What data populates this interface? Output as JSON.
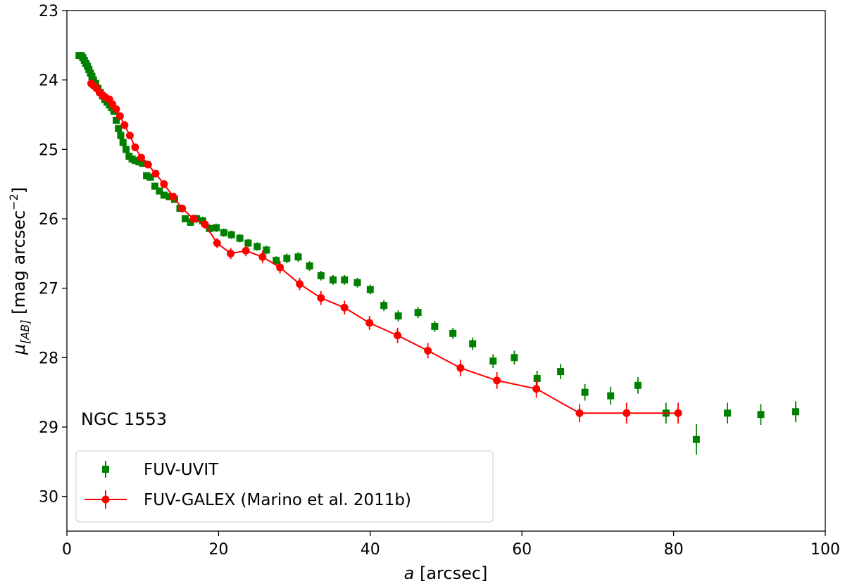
{
  "chart_data": {
    "type": "scatter",
    "xlabel_italic": "a",
    "xlabel_rest": " [arcsec]",
    "ylabel_mu": "μ",
    "ylabel_sub": "[AB]",
    "ylabel_main": " [mag arcsec",
    "ylabel_sup": "−2",
    "ylabel_close": "]",
    "xlim": [
      0,
      100
    ],
    "ylim": [
      30.5,
      23
    ],
    "y_inverted": true,
    "xticks": [
      0,
      20,
      40,
      60,
      80,
      100
    ],
    "yticks": [
      23,
      24,
      25,
      26,
      27,
      28,
      29,
      30
    ],
    "grid": false,
    "annotation": "NGC 1553",
    "legend_placement": "lower-left",
    "series": [
      {
        "name": "FUV-UVIT",
        "marker": "square",
        "line": false,
        "color": "#008000",
        "x": [
          1.6,
          1.9,
          2.1,
          2.3,
          2.5,
          2.7,
          2.9,
          3.1,
          3.3,
          3.5,
          3.8,
          4.1,
          4.4,
          4.7,
          5.0,
          5.3,
          5.6,
          5.9,
          6.2,
          6.5,
          6.8,
          7.1,
          7.4,
          7.8,
          8.2,
          8.6,
          9.0,
          9.5,
          10.0,
          10.5,
          11.0,
          11.6,
          12.2,
          12.8,
          13.5,
          14.2,
          14.9,
          15.6,
          16.3,
          17.1,
          17.9,
          18.8,
          19.7,
          20.7,
          21.7,
          22.8,
          23.9,
          25.1,
          26.3,
          27.6,
          29.0,
          30.5,
          32.0,
          33.5,
          35.1,
          36.6,
          38.3,
          40.0,
          41.8,
          43.7,
          46.3,
          48.5,
          50.9,
          53.5,
          56.2,
          59.0,
          62.0,
          65.1,
          68.3,
          71.7,
          75.3,
          79.0,
          83.0,
          87.1,
          91.5,
          96.1
        ],
        "y": [
          23.65,
          23.65,
          23.68,
          23.72,
          23.76,
          23.8,
          23.85,
          23.9,
          23.95,
          24.0,
          24.05,
          24.12,
          24.18,
          24.23,
          24.28,
          24.32,
          24.36,
          24.4,
          24.45,
          24.58,
          24.7,
          24.8,
          24.9,
          25.0,
          25.1,
          25.14,
          25.16,
          25.18,
          25.2,
          25.38,
          25.4,
          25.53,
          25.6,
          25.66,
          25.68,
          25.72,
          25.85,
          26.0,
          26.05,
          26.0,
          26.03,
          26.14,
          26.13,
          26.2,
          26.23,
          26.28,
          26.35,
          26.4,
          26.45,
          26.6,
          26.57,
          26.55,
          26.68,
          26.82,
          26.88,
          26.88,
          26.92,
          27.02,
          27.25,
          27.4,
          27.35,
          27.55,
          27.65,
          27.8,
          28.05,
          28.0,
          28.3,
          28.2,
          28.5,
          28.55,
          28.4,
          28.8,
          29.18,
          28.8,
          28.82,
          28.78
        ],
        "yerr": [
          0.02,
          0.02,
          0.02,
          0.02,
          0.02,
          0.02,
          0.02,
          0.02,
          0.02,
          0.02,
          0.03,
          0.03,
          0.03,
          0.03,
          0.03,
          0.03,
          0.03,
          0.03,
          0.03,
          0.04,
          0.04,
          0.04,
          0.04,
          0.04,
          0.04,
          0.04,
          0.04,
          0.04,
          0.04,
          0.05,
          0.05,
          0.05,
          0.05,
          0.05,
          0.05,
          0.05,
          0.05,
          0.05,
          0.05,
          0.06,
          0.06,
          0.06,
          0.06,
          0.06,
          0.06,
          0.06,
          0.06,
          0.06,
          0.06,
          0.06,
          0.07,
          0.07,
          0.07,
          0.07,
          0.07,
          0.07,
          0.07,
          0.07,
          0.08,
          0.08,
          0.08,
          0.08,
          0.08,
          0.09,
          0.1,
          0.1,
          0.11,
          0.11,
          0.12,
          0.13,
          0.12,
          0.15,
          0.22,
          0.15,
          0.15,
          0.15
        ]
      },
      {
        "name": "FUV-GALEX (Marino et al. 2011b)",
        "marker": "circle",
        "line": true,
        "color": "#ff0000",
        "x": [
          3.2,
          3.5,
          3.9,
          4.3,
          4.7,
          5.1,
          5.6,
          6.0,
          6.5,
          7.0,
          7.6,
          8.3,
          9.0,
          9.8,
          10.7,
          11.7,
          12.8,
          14.0,
          15.2,
          16.7,
          18.2,
          19.8,
          21.6,
          23.6,
          25.8,
          28.1,
          30.7,
          33.5,
          36.6,
          39.9,
          43.6,
          47.6,
          51.9,
          56.7,
          61.9,
          67.6,
          73.8,
          80.6
        ],
        "y": [
          24.05,
          24.08,
          24.12,
          24.18,
          24.22,
          24.25,
          24.28,
          24.35,
          24.42,
          24.52,
          24.65,
          24.8,
          24.97,
          25.12,
          25.22,
          25.35,
          25.5,
          25.68,
          25.85,
          26.0,
          26.08,
          26.35,
          26.5,
          26.46,
          26.55,
          26.7,
          26.94,
          27.14,
          27.28,
          27.5,
          27.68,
          27.9,
          28.15,
          28.33,
          28.45,
          28.8,
          28.8,
          28.8
        ],
        "yerr": [
          0.02,
          0.02,
          0.02,
          0.02,
          0.02,
          0.02,
          0.03,
          0.03,
          0.03,
          0.03,
          0.03,
          0.04,
          0.04,
          0.04,
          0.04,
          0.04,
          0.05,
          0.05,
          0.05,
          0.06,
          0.06,
          0.07,
          0.08,
          0.08,
          0.09,
          0.09,
          0.09,
          0.1,
          0.1,
          0.1,
          0.11,
          0.11,
          0.12,
          0.12,
          0.13,
          0.13,
          0.15,
          0.15
        ]
      }
    ]
  }
}
